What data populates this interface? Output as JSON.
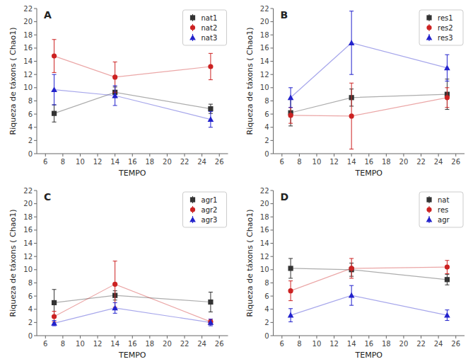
{
  "chart_data": [
    {
      "type": "line",
      "title": "A",
      "xlabel": "TEMPO",
      "ylabel": "Riqueza de táxons ( Chao1)",
      "x": [
        7,
        14,
        25
      ],
      "series": [
        {
          "name": "nat1",
          "color": "#333333",
          "marker": "square",
          "values": [
            6.1,
            9.3,
            6.8
          ],
          "errors": [
            1.3,
            0.8,
            0.7
          ]
        },
        {
          "name": "nat2",
          "color": "#cc2222",
          "marker": "circle",
          "values": [
            14.8,
            11.6,
            13.2
          ],
          "errors": [
            2.5,
            2.3,
            2.0
          ]
        },
        {
          "name": "nat3",
          "color": "#2222cc",
          "marker": "triangle",
          "values": [
            9.7,
            8.8,
            5.2
          ],
          "errors": [
            2.3,
            1.5,
            1.2
          ]
        }
      ],
      "xlim": [
        5,
        27
      ],
      "xticks": [
        6,
        8,
        10,
        12,
        14,
        16,
        18,
        20,
        22,
        24,
        26
      ],
      "ylim": [
        0,
        22
      ],
      "yticks": [
        0,
        2,
        4,
        6,
        8,
        10,
        12,
        14,
        16,
        18,
        20,
        22
      ],
      "grid": false,
      "legend": "upper right"
    },
    {
      "type": "line",
      "title": "B",
      "xlabel": "TEMPO",
      "ylabel": "Riqueza de táxons ( Chao1)",
      "x": [
        7,
        14,
        25
      ],
      "series": [
        {
          "name": "res1",
          "color": "#333333",
          "marker": "square",
          "values": [
            6.2,
            8.5,
            9.0
          ],
          "errors": [
            2.0,
            1.3,
            2.3
          ]
        },
        {
          "name": "res2",
          "color": "#cc2222",
          "marker": "circle",
          "values": [
            5.8,
            5.7,
            8.5
          ],
          "errors": [
            1.2,
            5.0,
            1.5
          ]
        },
        {
          "name": "res3",
          "color": "#2222cc",
          "marker": "triangle",
          "values": [
            8.5,
            16.8,
            13.0
          ],
          "errors": [
            1.5,
            4.8,
            2.0
          ]
        }
      ],
      "xlim": [
        5,
        27
      ],
      "xticks": [
        6,
        8,
        10,
        12,
        14,
        16,
        18,
        20,
        22,
        24,
        26
      ],
      "ylim": [
        0,
        22
      ],
      "yticks": [
        0,
        2,
        4,
        6,
        8,
        10,
        12,
        14,
        16,
        18,
        20,
        22
      ],
      "grid": false,
      "legend": "upper right"
    },
    {
      "type": "line",
      "title": "C",
      "xlabel": "TEMPO",
      "ylabel": "Riqueza de táxons ( Chao1)",
      "x": [
        7,
        14,
        25
      ],
      "series": [
        {
          "name": "agr1",
          "color": "#333333",
          "marker": "square",
          "values": [
            5.0,
            6.1,
            5.1
          ],
          "errors": [
            2.0,
            0.7,
            1.5
          ]
        },
        {
          "name": "agr2",
          "color": "#cc2222",
          "marker": "circle",
          "values": [
            2.9,
            7.8,
            2.1
          ],
          "errors": [
            0.8,
            3.5,
            0.4
          ]
        },
        {
          "name": "agr3",
          "color": "#2222cc",
          "marker": "triangle",
          "values": [
            1.9,
            4.2,
            2.0
          ],
          "errors": [
            0.4,
            0.8,
            0.5
          ]
        }
      ],
      "xlim": [
        5,
        27
      ],
      "xticks": [
        6,
        8,
        10,
        12,
        14,
        16,
        18,
        20,
        22,
        24,
        26
      ],
      "ylim": [
        0,
        22
      ],
      "yticks": [
        0,
        2,
        4,
        6,
        8,
        10,
        12,
        14,
        16,
        18,
        20,
        22
      ],
      "grid": false,
      "legend": "upper right"
    },
    {
      "type": "line",
      "title": "D",
      "xlabel": "TEMPO",
      "ylabel": "Riqueza de táxons ( Chao1)",
      "x": [
        7,
        14,
        25
      ],
      "series": [
        {
          "name": "nat",
          "color": "#333333",
          "marker": "square",
          "values": [
            10.2,
            10.0,
            8.5
          ],
          "errors": [
            1.5,
            1.0,
            0.8
          ]
        },
        {
          "name": "res",
          "color": "#cc2222",
          "marker": "circle",
          "values": [
            6.8,
            10.2,
            10.4
          ],
          "errors": [
            1.5,
            1.5,
            1.0
          ]
        },
        {
          "name": "agr",
          "color": "#2222cc",
          "marker": "triangle",
          "values": [
            3.1,
            6.1,
            3.1
          ],
          "errors": [
            1.0,
            1.5,
            0.8
          ]
        }
      ],
      "xlim": [
        5,
        27
      ],
      "xticks": [
        6,
        8,
        10,
        12,
        14,
        16,
        18,
        20,
        22,
        24,
        26
      ],
      "ylim": [
        0,
        22
      ],
      "yticks": [
        0,
        2,
        4,
        6,
        8,
        10,
        12,
        14,
        16,
        18,
        20,
        22
      ],
      "grid": false,
      "legend": "upper right"
    }
  ]
}
